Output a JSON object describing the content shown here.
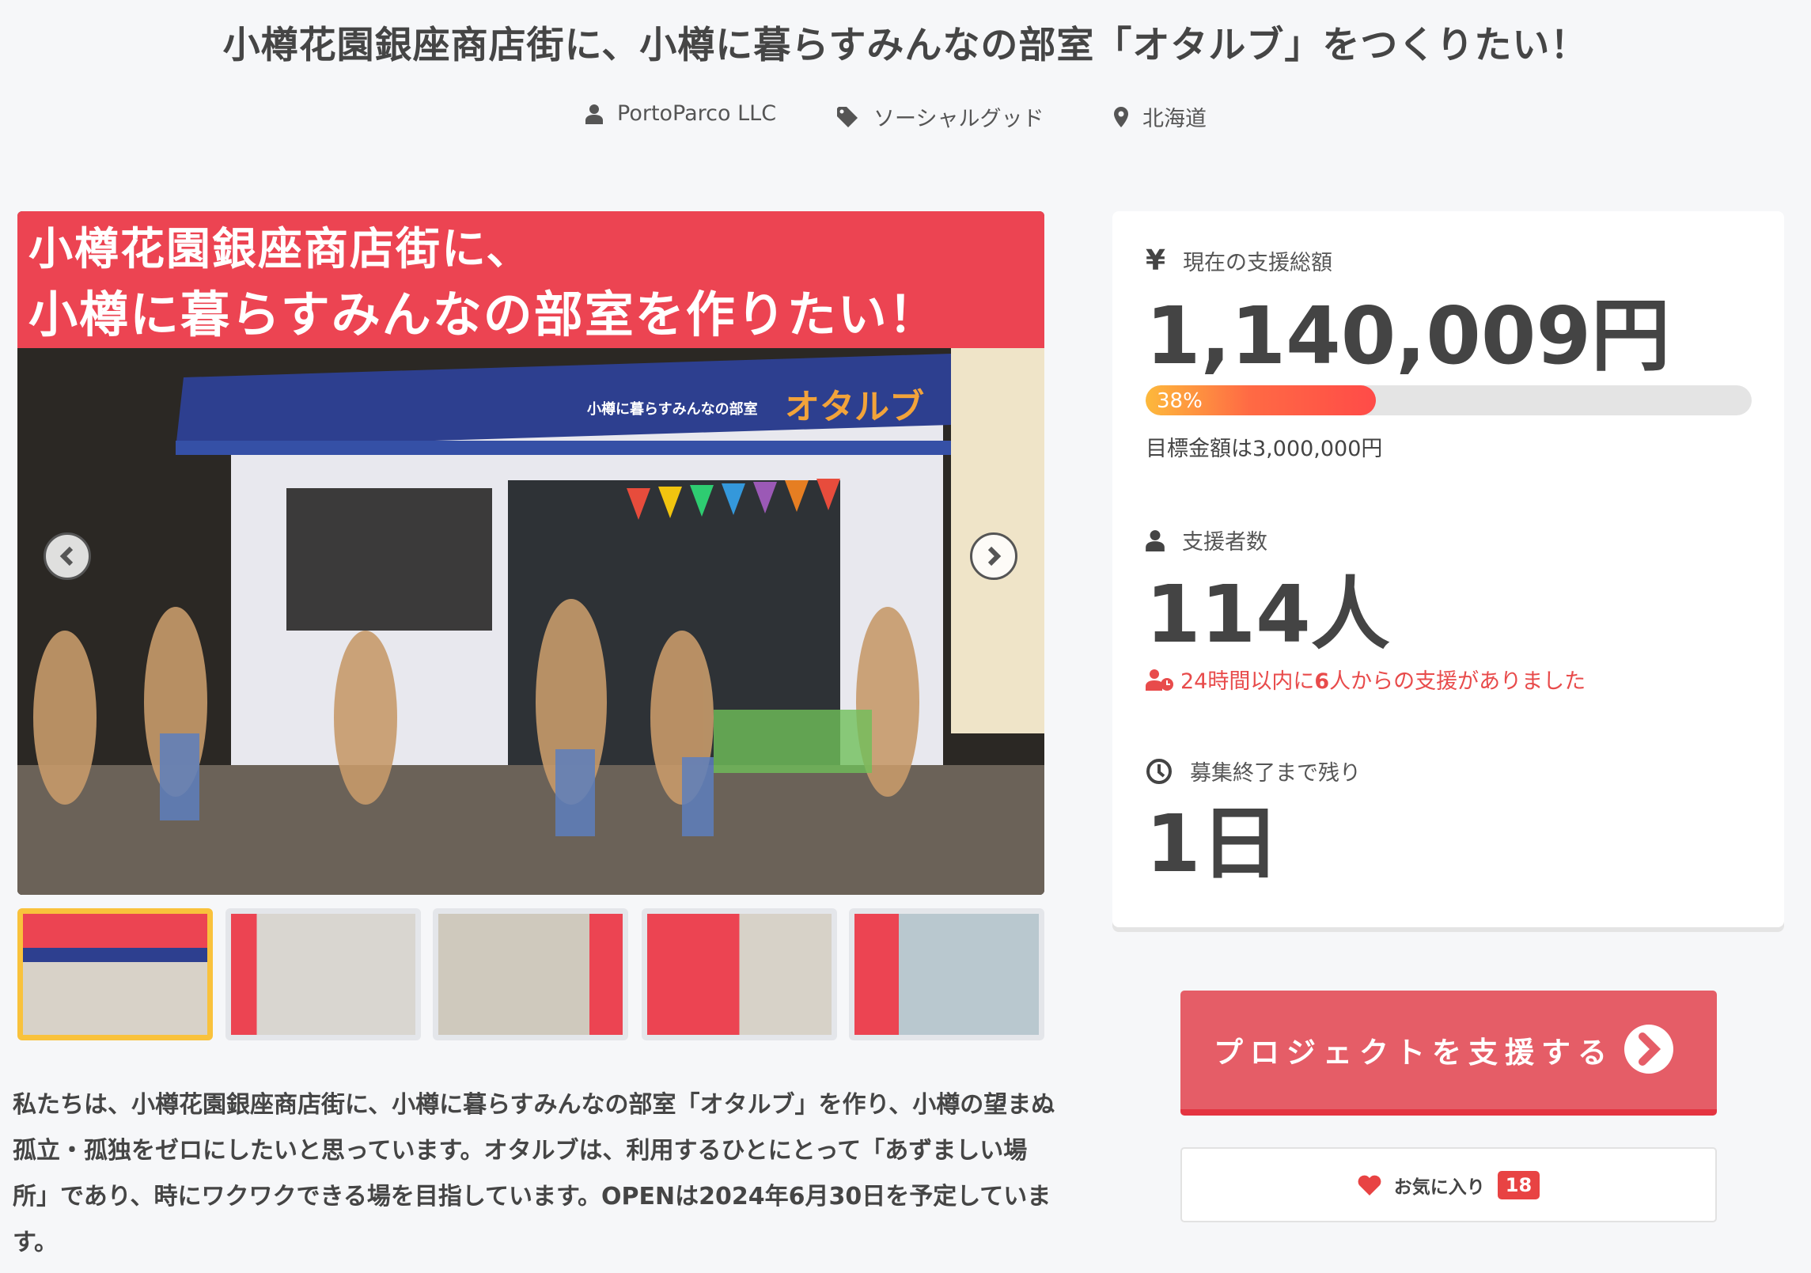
{
  "page": {
    "title": "小樽花園銀座商店街に、小樽に暮らすみんなの部室「オタルブ」をつくりたい！"
  },
  "meta": {
    "owner": "PortoParco LLC",
    "category": "ソーシャルグッド",
    "location": "北海道"
  },
  "hero": {
    "banner_line1": "小樽花園銀座商店街に、",
    "banner_line2": "小樽に暮らすみんなの部室を作りたい！",
    "awning_text": "小樽に暮らすみんなの部室",
    "awning_logo": "オタルブ",
    "thumbnail_count": 5,
    "selected_thumbnail": 1
  },
  "description": "私たちは、小樽花園銀座商店街に、小樽に暮らすみんなの部室「オタルブ」を作り、小樽の望まぬ孤立・孤独をゼロにしたいと思っています。オタルブは、利用するひとにとって「あずましい場所」であり、時にワクワクできる場を目指しています。OPENは2024年6月30日を予定しています。",
  "stats": {
    "amount_label": "現在の支援総額",
    "amount": "1,140,009円",
    "progress_percent": 38,
    "progress_label": "38%",
    "goal": "目標金額は3,000,000円",
    "supporters_label": "支援者数",
    "supporters": "114人",
    "recent_prefix": "24時間以内に",
    "recent_count": "6",
    "recent_suffix": "人からの支援がありました",
    "remaining_label": "募集終了まで残り",
    "remaining": "1日"
  },
  "actions": {
    "support_label": "プロジェクトを支援する",
    "favorite_label": "お気に入り",
    "favorite_count": "18"
  },
  "colors": {
    "accent": "#e55d67",
    "red": "#e84343",
    "progress_start": "#fdb93c",
    "progress_end": "#ff4b48",
    "banner": "#ec4452"
  }
}
